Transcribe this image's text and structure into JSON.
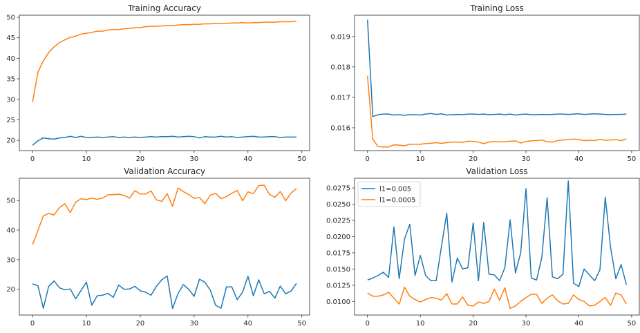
{
  "colors": {
    "series_a": "#1f77b4",
    "series_b": "#ff7f0e",
    "axis": "#262626"
  },
  "chart_data": [
    {
      "type": "line",
      "title": "Training Accuracy",
      "xlabel": "",
      "ylabel": "",
      "xlim": [
        -2.45,
        51.45
      ],
      "ylim": [
        17.5,
        50.5
      ],
      "xticks": [
        0,
        10,
        20,
        30,
        40,
        50
      ],
      "yticks": [
        20,
        25,
        30,
        35,
        40,
        45,
        50
      ],
      "grid": false,
      "legend": null,
      "series": [
        {
          "values": [
            18.8,
            19.9,
            20.6,
            20.4,
            20.3,
            20.6,
            20.7,
            21.0,
            20.7,
            21.0,
            20.7,
            20.7,
            20.8,
            20.7,
            20.8,
            20.9,
            20.7,
            20.8,
            20.7,
            20.8,
            20.7,
            20.8,
            20.9,
            20.8,
            20.9,
            20.9,
            21.0,
            20.8,
            20.9,
            21.0,
            20.9,
            20.6,
            20.9,
            20.8,
            20.8,
            21.0,
            20.8,
            20.9,
            20.7,
            20.8,
            20.9,
            21.0,
            20.8,
            20.8,
            20.9,
            20.9,
            20.7,
            20.8,
            20.8,
            20.8
          ]
        },
        {
          "values": [
            29.3,
            36.6,
            39.4,
            41.4,
            42.8,
            43.8,
            44.5,
            45.1,
            45.4,
            45.9,
            46.1,
            46.3,
            46.6,
            46.6,
            46.9,
            47.0,
            47.0,
            47.2,
            47.3,
            47.4,
            47.5,
            47.7,
            47.8,
            47.8,
            47.9,
            48.0,
            48.0,
            48.1,
            48.2,
            48.2,
            48.3,
            48.3,
            48.4,
            48.4,
            48.5,
            48.5,
            48.5,
            48.6,
            48.6,
            48.7,
            48.6,
            48.7,
            48.7,
            48.8,
            48.8,
            48.8,
            48.9,
            48.9,
            48.9,
            49.0
          ]
        }
      ]
    },
    {
      "type": "line",
      "title": "Training Loss",
      "xlabel": "",
      "ylabel": "",
      "xlim": [
        -2.45,
        51.45
      ],
      "ylim": [
        0.01525,
        0.0197
      ],
      "xticks": [
        0,
        10,
        20,
        30,
        40,
        50
      ],
      "yticks": [
        0.016,
        0.017,
        0.018,
        0.019
      ],
      "grid": false,
      "legend": null,
      "series": [
        {
          "values": [
            0.01955,
            0.01637,
            0.01643,
            0.01645,
            0.01645,
            0.01642,
            0.01643,
            0.01641,
            0.01643,
            0.01643,
            0.01642,
            0.01645,
            0.01647,
            0.01644,
            0.01646,
            0.01642,
            0.01643,
            0.01644,
            0.01643,
            0.01645,
            0.01645,
            0.01644,
            0.01645,
            0.01643,
            0.01644,
            0.01645,
            0.01643,
            0.01645,
            0.01642,
            0.01644,
            0.01645,
            0.01643,
            0.01643,
            0.01644,
            0.01643,
            0.01644,
            0.01645,
            0.01645,
            0.01644,
            0.01645,
            0.01646,
            0.01644,
            0.01645,
            0.01646,
            0.01645,
            0.01644,
            0.01643,
            0.01644,
            0.01644,
            0.01645
          ]
        },
        {
          "values": [
            0.01771,
            0.01563,
            0.01538,
            0.01537,
            0.01537,
            0.01544,
            0.01543,
            0.01541,
            0.01546,
            0.01546,
            0.01546,
            0.01548,
            0.01549,
            0.01551,
            0.01549,
            0.01551,
            0.01553,
            0.01553,
            0.01552,
            0.01556,
            0.01555,
            0.01553,
            0.01548,
            0.01553,
            0.01555,
            0.01554,
            0.01554,
            0.01556,
            0.01557,
            0.0155,
            0.01555,
            0.01557,
            0.01558,
            0.0156,
            0.01554,
            0.01553,
            0.01558,
            0.0156,
            0.01561,
            0.01563,
            0.01561,
            0.01558,
            0.01559,
            0.01558,
            0.01562,
            0.01559,
            0.0156,
            0.01561,
            0.01558,
            0.01563
          ]
        }
      ]
    },
    {
      "type": "line",
      "title": "Validation Accuracy",
      "xlabel": "",
      "ylabel": "",
      "xlim": [
        -2.45,
        51.45
      ],
      "ylim": [
        11.3,
        57.5
      ],
      "xticks": [
        0,
        10,
        20,
        30,
        40,
        50
      ],
      "yticks": [
        20,
        30,
        40,
        50
      ],
      "grid": false,
      "legend": null,
      "series": [
        {
          "values": [
            21.8,
            21.2,
            13.6,
            21.0,
            22.8,
            20.5,
            19.8,
            20.1,
            16.8,
            19.6,
            22.4,
            14.6,
            17.8,
            18.0,
            18.6,
            17.3,
            21.4,
            20.0,
            20.1,
            21.0,
            19.5,
            19.0,
            18.0,
            21.0,
            23.2,
            24.5,
            13.5,
            18.5,
            21.6,
            20.0,
            17.6,
            23.4,
            22.4,
            19.7,
            14.6,
            13.6,
            20.8,
            20.8,
            16.5,
            19.0,
            24.4,
            17.8,
            23.2,
            18.5,
            19.3,
            17.0,
            21.1,
            18.5,
            19.4,
            22.0
          ]
        },
        {
          "values": [
            35.1,
            39.8,
            44.8,
            45.6,
            45.1,
            47.6,
            48.9,
            45.9,
            49.4,
            50.6,
            50.3,
            50.8,
            50.4,
            50.8,
            51.9,
            52.0,
            52.1,
            51.7,
            50.8,
            53.3,
            52.2,
            52.2,
            53.2,
            50.2,
            49.7,
            52.3,
            48.0,
            54.2,
            53.0,
            52.0,
            50.7,
            51.0,
            48.9,
            51.8,
            52.4,
            50.6,
            51.3,
            52.4,
            53.4,
            49.9,
            52.9,
            52.3,
            55.0,
            55.2,
            52.0,
            51.1,
            53.0,
            49.9,
            52.5,
            54.0
          ]
        }
      ]
    },
    {
      "type": "line",
      "title": "Validation Loss",
      "xlabel": "",
      "ylabel": "",
      "xlim": [
        -2.45,
        51.45
      ],
      "ylim": [
        0.0079,
        0.029
      ],
      "xticks": [
        0,
        10,
        20,
        30,
        40,
        50
      ],
      "yticks": [
        0.01,
        0.0125,
        0.015,
        0.0175,
        0.02,
        0.0225,
        0.025,
        0.0275
      ],
      "grid": false,
      "legend": {
        "location": "upper-left",
        "entries": [
          "l1=0.005",
          "l1=0.0005"
        ]
      },
      "series": [
        {
          "name": "l1=0.005",
          "values": [
            0.0133,
            0.0136,
            0.014,
            0.0145,
            0.0137,
            0.0215,
            0.0135,
            0.0196,
            0.0219,
            0.014,
            0.0171,
            0.014,
            0.0132,
            0.0132,
            0.0185,
            0.0236,
            0.013,
            0.0167,
            0.015,
            0.0152,
            0.0221,
            0.0132,
            0.0222,
            0.0142,
            0.0141,
            0.0132,
            0.0152,
            0.0226,
            0.0144,
            0.0175,
            0.0274,
            0.0136,
            0.0133,
            0.0168,
            0.026,
            0.0138,
            0.0135,
            0.0142,
            0.0286,
            0.0128,
            0.0123,
            0.015,
            0.0141,
            0.0132,
            0.0149,
            0.0261,
            0.0184,
            0.0135,
            0.0157,
            0.0126
          ]
        },
        {
          "name": "l1=0.0005",
          "values": [
            0.0113,
            0.0108,
            0.0108,
            0.011,
            0.0114,
            0.0105,
            0.0096,
            0.0122,
            0.0108,
            0.0103,
            0.0099,
            0.0103,
            0.0106,
            0.0105,
            0.0102,
            0.0112,
            0.0096,
            0.0096,
            0.0107,
            0.0094,
            0.0093,
            0.0099,
            0.0097,
            0.01,
            0.0119,
            0.0102,
            0.0121,
            0.0089,
            0.0093,
            0.01,
            0.0106,
            0.0111,
            0.0111,
            0.0097,
            0.0105,
            0.011,
            0.0101,
            0.0096,
            0.0097,
            0.011,
            0.0103,
            0.01,
            0.0093,
            0.0094,
            0.01,
            0.0106,
            0.0094,
            0.0113,
            0.011,
            0.0096
          ]
        }
      ]
    }
  ]
}
